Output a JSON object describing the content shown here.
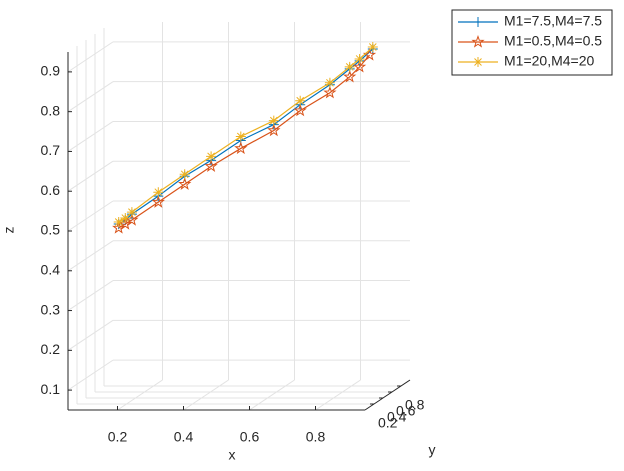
{
  "chart_data": {
    "type": "line3d",
    "xlabel": "x",
    "ylabel": "y",
    "zlabel": "z",
    "xlim": [
      0.05,
      0.95
    ],
    "ylim": [
      0,
      1
    ],
    "zlim": [
      0.05,
      0.95
    ],
    "xticks": [
      0.2,
      0.4,
      0.6,
      0.8
    ],
    "yticks": [
      0.2,
      0.4,
      0.6,
      0.8
    ],
    "zticks": [
      0.1,
      0.2,
      0.3,
      0.4,
      0.5,
      0.6,
      0.7,
      0.8,
      0.9
    ],
    "grid": true,
    "legend": "outside-top-right",
    "series": [
      {
        "name": "M1=7.5,M4=7.5",
        "color": "#0072BD",
        "marker": "plus",
        "x": [
          0.19,
          0.21,
          0.23,
          0.31,
          0.39,
          0.47,
          0.56,
          0.66,
          0.74,
          0.83,
          0.89,
          0.92,
          0.96
        ],
        "y": [
          0.1,
          0.1,
          0.1,
          0.1,
          0.1,
          0.1,
          0.1,
          0.1,
          0.1,
          0.1,
          0.1,
          0.1,
          0.1
        ],
        "z": [
          0.51,
          0.52,
          0.535,
          0.58,
          0.63,
          0.67,
          0.72,
          0.76,
          0.81,
          0.86,
          0.9,
          0.92,
          0.95
        ]
      },
      {
        "name": "M1=0.5,M4=0.5",
        "color": "#D95319",
        "marker": "pentagram",
        "x": [
          0.19,
          0.21,
          0.23,
          0.31,
          0.39,
          0.47,
          0.56,
          0.66,
          0.74,
          0.83,
          0.89,
          0.92,
          0.95
        ],
        "y": [
          0.1,
          0.1,
          0.1,
          0.1,
          0.1,
          0.1,
          0.1,
          0.1,
          0.1,
          0.1,
          0.1,
          0.1,
          0.1
        ],
        "z": [
          0.5,
          0.51,
          0.52,
          0.565,
          0.61,
          0.655,
          0.7,
          0.745,
          0.795,
          0.84,
          0.88,
          0.905,
          0.935
        ]
      },
      {
        "name": "M1=20,M4=20",
        "color": "#EDB120",
        "marker": "asterisk",
        "x": [
          0.19,
          0.21,
          0.23,
          0.31,
          0.39,
          0.47,
          0.56,
          0.66,
          0.74,
          0.83,
          0.89,
          0.92,
          0.96
        ],
        "y": [
          0.1,
          0.1,
          0.1,
          0.1,
          0.1,
          0.1,
          0.1,
          0.1,
          0.1,
          0.1,
          0.1,
          0.1,
          0.1
        ],
        "z": [
          0.515,
          0.525,
          0.54,
          0.59,
          0.635,
          0.68,
          0.73,
          0.77,
          0.82,
          0.865,
          0.905,
          0.925,
          0.955
        ]
      }
    ]
  }
}
